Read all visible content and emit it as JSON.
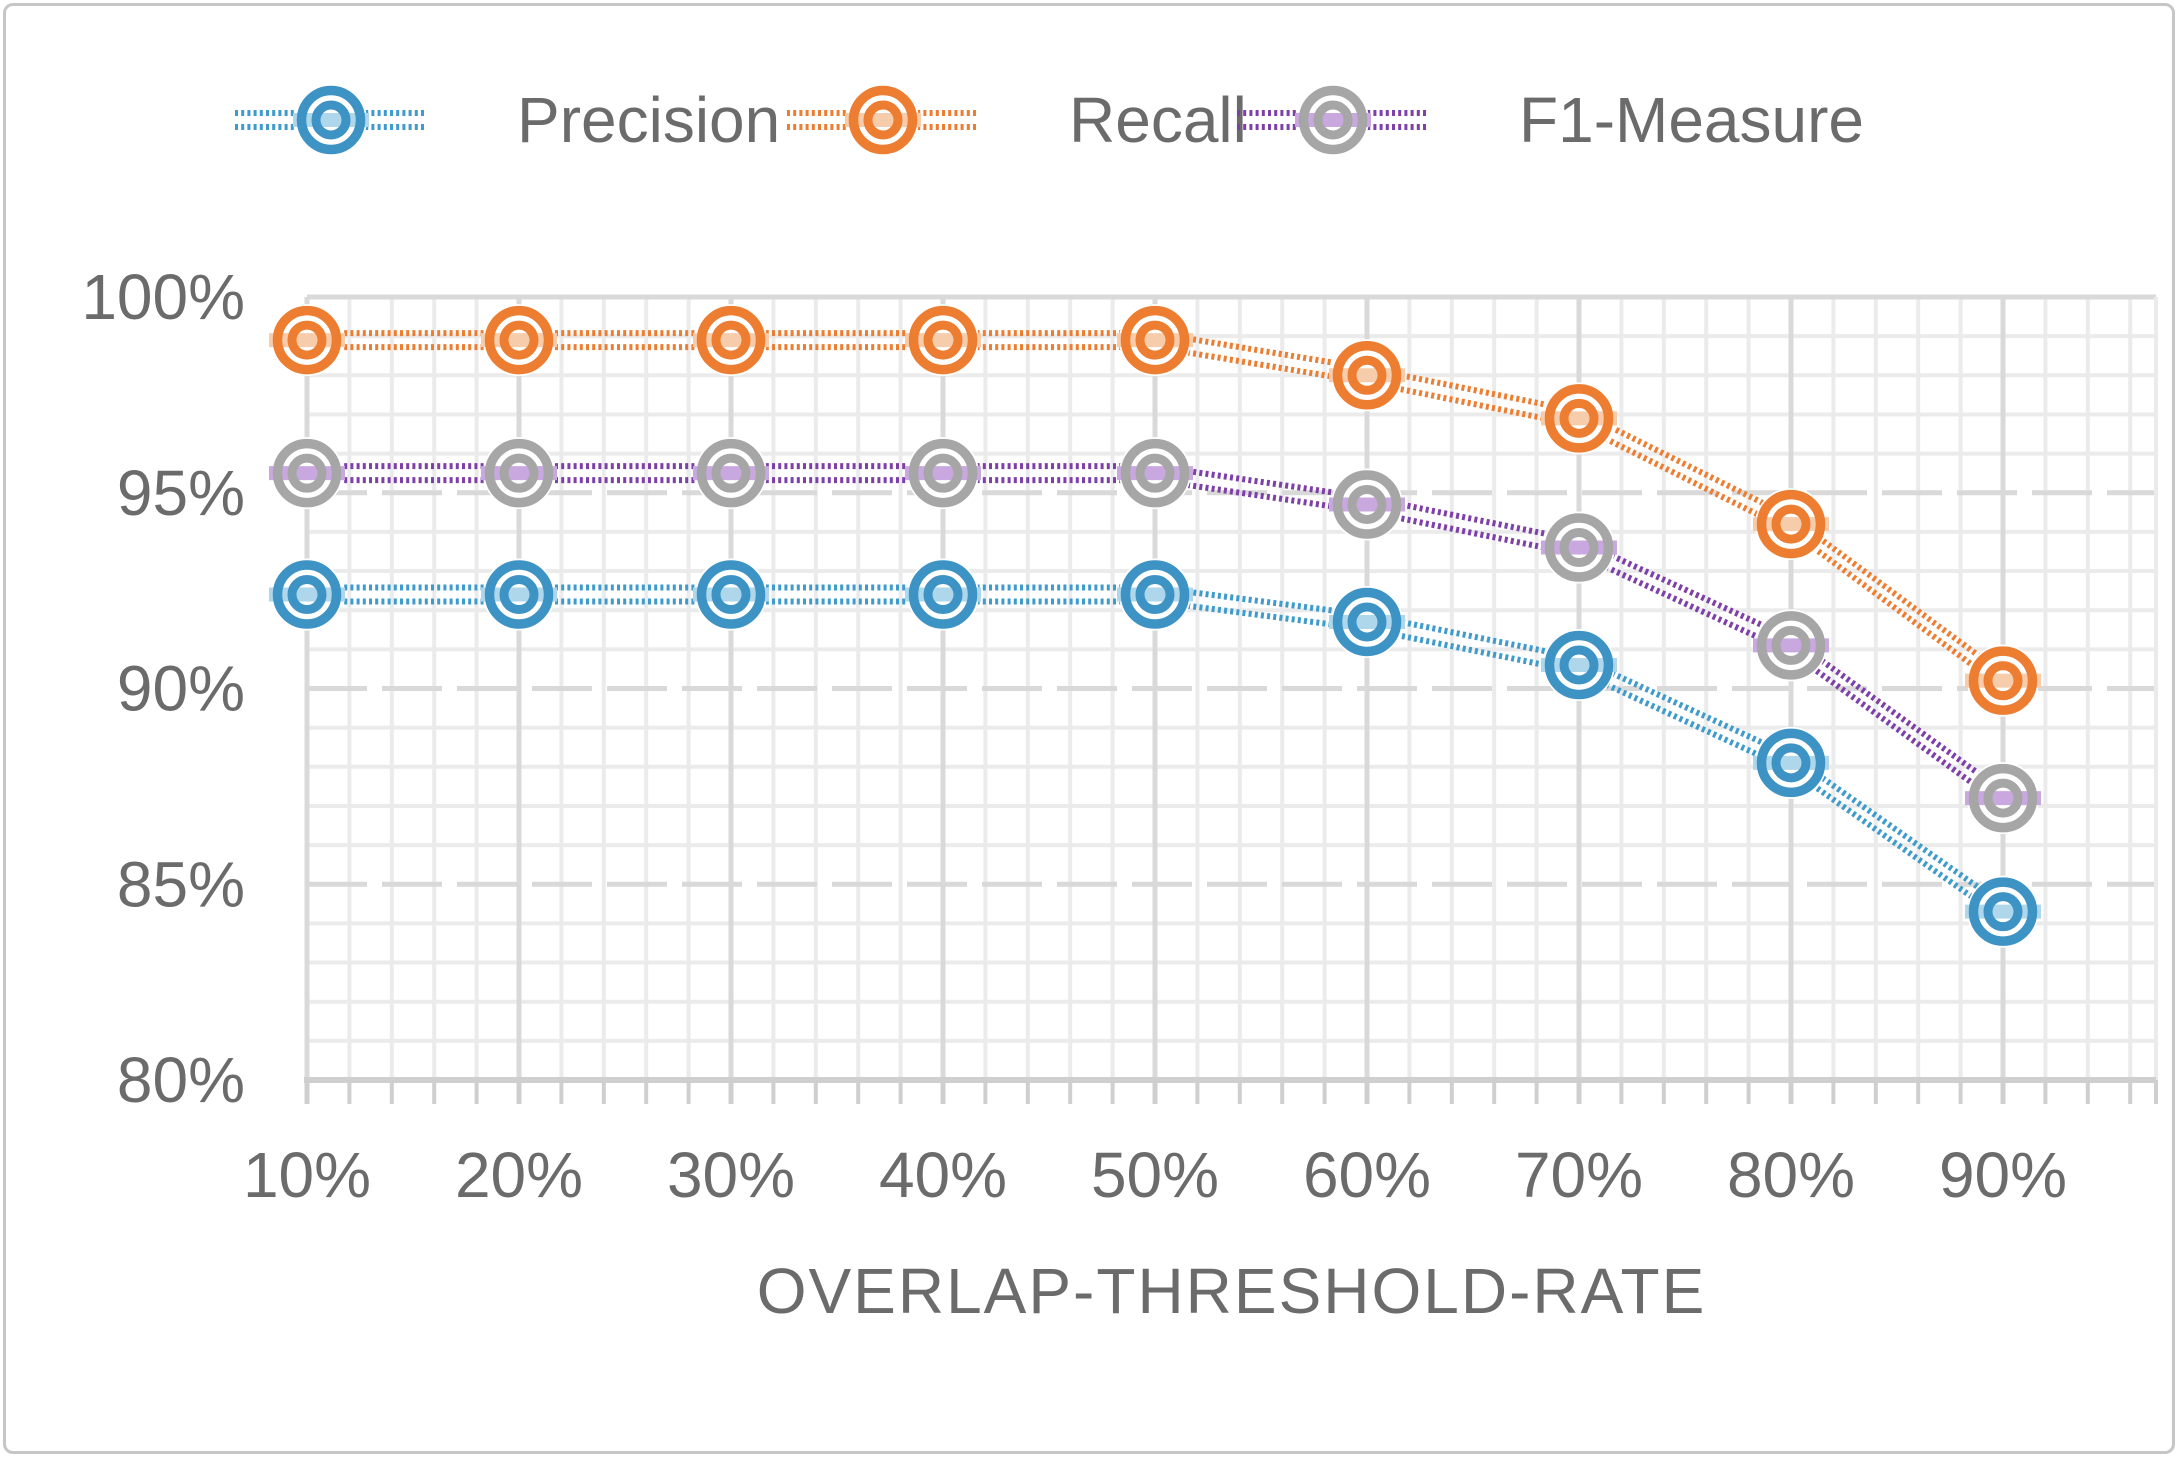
{
  "chart_data": {
    "type": "line",
    "title": "",
    "xlabel": "OVERLAP-THRESHOLD-RATE",
    "ylabel": "",
    "categories": [
      "10%",
      "20%",
      "30%",
      "40%",
      "50%",
      "60%",
      "70%",
      "80%",
      "90%"
    ],
    "series": [
      {
        "name": "Precision",
        "line_color": "#3e9bcb",
        "marker_color": "#3e93c5",
        "tint": "#aed7ec",
        "values": [
          92.4,
          92.4,
          92.4,
          92.4,
          92.4,
          91.7,
          90.6,
          88.1,
          84.3
        ]
      },
      {
        "name": "Recall",
        "line_color": "#ed7d31",
        "marker_color": "#ed7d31",
        "tint": "#f7ccab",
        "values": [
          98.9,
          98.9,
          98.9,
          98.9,
          98.9,
          98.0,
          96.9,
          94.2,
          90.2
        ]
      },
      {
        "name": "F1-Measure",
        "line_color": "#7d3fa8",
        "marker_color": "#a6a6a6",
        "tint": "#c9a8e0",
        "values": [
          95.5,
          95.5,
          95.5,
          95.5,
          95.5,
          94.7,
          93.6,
          91.1,
          87.2
        ]
      }
    ],
    "y_ticks": [
      {
        "value": 80,
        "label": "80%"
      },
      {
        "value": 85,
        "label": "85%"
      },
      {
        "value": 90,
        "label": "90%"
      },
      {
        "value": 95,
        "label": "95%"
      },
      {
        "value": 100,
        "label": "100%"
      }
    ],
    "ylim": [
      80,
      100
    ],
    "grid": {
      "minor_y_step_pct": 1,
      "major_y_step_pct": 5,
      "minor_x_divisions_per_category": 5,
      "grid_on": true
    },
    "legend_position": "top"
  },
  "colors": {
    "text": "#6b6b6b",
    "grid_minor": "#ebebeb",
    "grid_major": "#d9d9d9",
    "axis_line": "#cfcfcf",
    "figure_border": "#c6c6c6",
    "background": "#ffffff"
  }
}
